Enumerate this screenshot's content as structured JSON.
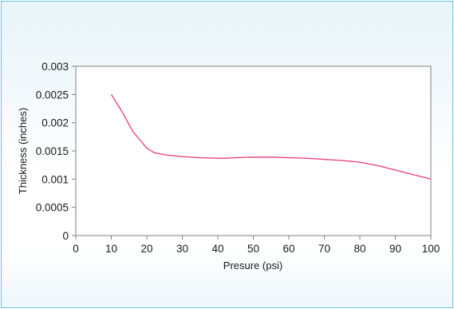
{
  "chart_data": {
    "type": "line",
    "title": "",
    "xlabel": "Presure (psi)",
    "ylabel": "Thickness (inches)",
    "xlim": [
      0,
      100
    ],
    "ylim": [
      0,
      0.003
    ],
    "x_ticks": [
      0,
      10,
      20,
      30,
      40,
      50,
      60,
      70,
      80,
      90,
      100
    ],
    "y_ticks": [
      0,
      0.0005,
      0.001,
      0.0015,
      0.002,
      0.0025,
      0.003
    ],
    "x_tick_labels": [
      "0",
      "10",
      "20",
      "30",
      "40",
      "50",
      "60",
      "70",
      "80",
      "90",
      "100"
    ],
    "y_tick_labels": [
      "0",
      "0.0005",
      "0.001",
      "0.0015",
      "0.002",
      "0.0025",
      "0.003"
    ],
    "grid": false,
    "legend": "none",
    "series": [
      {
        "color": "#e8397f",
        "x": [
          10,
          13,
          16,
          20,
          22,
          25,
          30,
          35,
          40,
          42,
          45,
          50,
          55,
          60,
          65,
          70,
          75,
          80,
          85,
          90,
          95,
          100
        ],
        "y": [
          0.0025,
          0.0022,
          0.00185,
          0.00155,
          0.00147,
          0.00143,
          0.0014,
          0.00138,
          0.00137,
          0.00137,
          0.00138,
          0.00139,
          0.00139,
          0.00138,
          0.00137,
          0.00135,
          0.00133,
          0.0013,
          0.00124,
          0.00116,
          0.00108,
          0.001
        ]
      }
    ]
  }
}
